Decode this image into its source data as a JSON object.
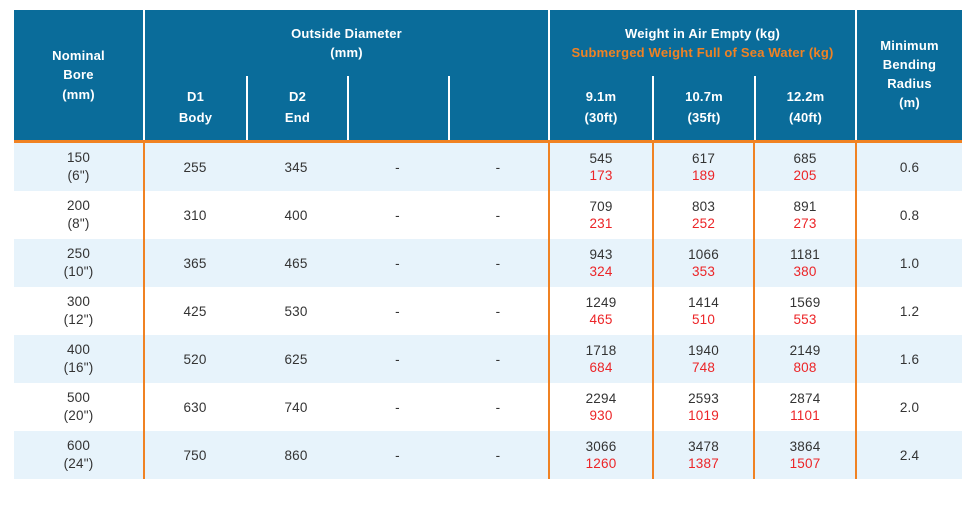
{
  "colors": {
    "header_bg": "#0A6C9A",
    "accent_orange": "#F08223",
    "row_alt_bg": "#E7F3FB",
    "value_red": "#EC2427",
    "text_dark": "#333333"
  },
  "header": {
    "col_nominal_bore": "Nominal\nBore\n(mm)",
    "outside_diameter": {
      "title": "Outside Diameter\n(mm)",
      "subcols": [
        {
          "label": "D1",
          "sublabel": "Body"
        },
        {
          "label": "D2",
          "sublabel": "End"
        },
        {
          "label": "",
          "sublabel": ""
        },
        {
          "label": "",
          "sublabel": ""
        }
      ]
    },
    "weight": {
      "title_air": "Weight in Air Empty (kg)",
      "title_submerged": "Submerged Weight Full of Sea Water (kg)",
      "subcols": [
        {
          "length_m": "9.1m",
          "length_ft": "(30ft)"
        },
        {
          "length_m": "10.7m",
          "length_ft": "(35ft)"
        },
        {
          "length_m": "12.2m",
          "length_ft": "(40ft)"
        }
      ]
    },
    "col_min_bending_radius": "Minimum\nBending\nRadius\n(m)"
  },
  "rows": [
    {
      "bore": "150\n(6\")",
      "od": [
        "255",
        "345",
        "-",
        "-"
      ],
      "weights": [
        {
          "air": "545",
          "sub": "173"
        },
        {
          "air": "617",
          "sub": "189"
        },
        {
          "air": "685",
          "sub": "205"
        }
      ],
      "radius": "0.6"
    },
    {
      "bore": "200\n(8\")",
      "od": [
        "310",
        "400",
        "-",
        "-"
      ],
      "weights": [
        {
          "air": "709",
          "sub": "231"
        },
        {
          "air": "803",
          "sub": "252"
        },
        {
          "air": "891",
          "sub": "273"
        }
      ],
      "radius": "0.8"
    },
    {
      "bore": "250\n(10\")",
      "od": [
        "365",
        "465",
        "-",
        "-"
      ],
      "weights": [
        {
          "air": "943",
          "sub": "324"
        },
        {
          "air": "1066",
          "sub": "353"
        },
        {
          "air": "1181",
          "sub": "380"
        }
      ],
      "radius": "1.0"
    },
    {
      "bore": "300\n(12\")",
      "od": [
        "425",
        "530",
        "-",
        "-"
      ],
      "weights": [
        {
          "air": "1249",
          "sub": "465"
        },
        {
          "air": "1414",
          "sub": "510"
        },
        {
          "air": "1569",
          "sub": "553"
        }
      ],
      "radius": "1.2"
    },
    {
      "bore": "400\n(16\")",
      "od": [
        "520",
        "625",
        "-",
        "-"
      ],
      "weights": [
        {
          "air": "1718",
          "sub": "684"
        },
        {
          "air": "1940",
          "sub": "748"
        },
        {
          "air": "2149",
          "sub": "808"
        }
      ],
      "radius": "1.6"
    },
    {
      "bore": "500\n(20\")",
      "od": [
        "630",
        "740",
        "-",
        "-"
      ],
      "weights": [
        {
          "air": "2294",
          "sub": "930"
        },
        {
          "air": "2593",
          "sub": "1019"
        },
        {
          "air": "2874",
          "sub": "1101"
        }
      ],
      "radius": "2.0"
    },
    {
      "bore": "600\n(24\")",
      "od": [
        "750",
        "860",
        "-",
        "-"
      ],
      "weights": [
        {
          "air": "3066",
          "sub": "1260"
        },
        {
          "air": "3478",
          "sub": "1387"
        },
        {
          "air": "3864",
          "sub": "1507"
        }
      ],
      "radius": "2.4"
    }
  ]
}
